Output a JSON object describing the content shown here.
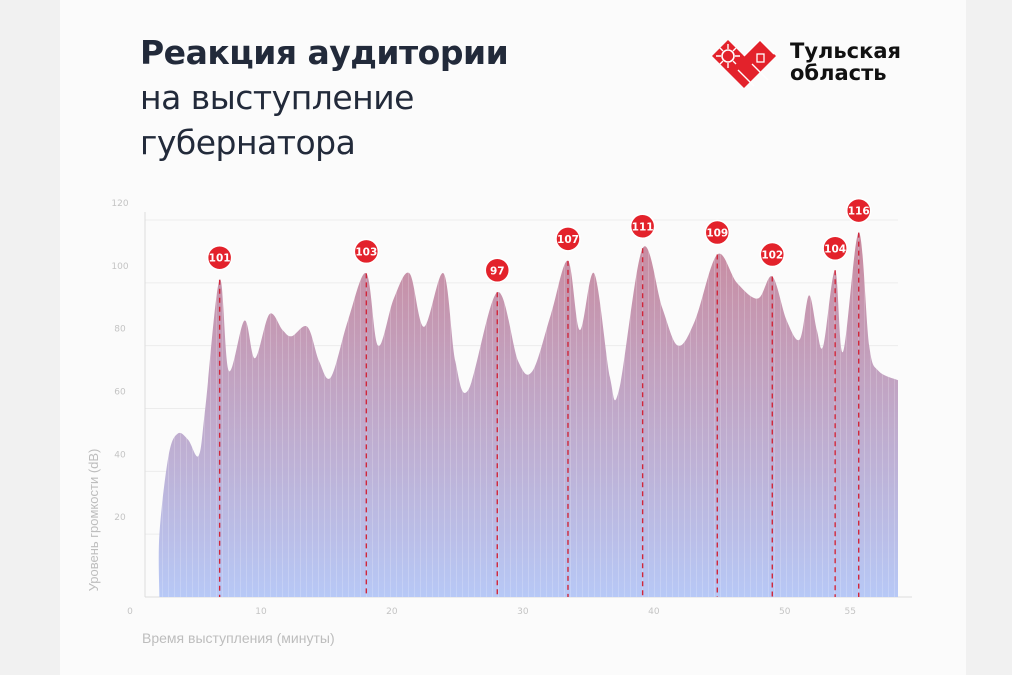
{
  "header": {
    "title_line1": "Реакция аудитории",
    "title_line2": "на выступление",
    "title_line3": "губернатора"
  },
  "logo": {
    "line1": "Тульская",
    "line2": "область",
    "color": "#e3222b"
  },
  "chart_data": {
    "type": "area",
    "title": "Реакция аудитории на выступление губернатора",
    "xlabel": "Время выступления (минуты)",
    "ylabel": "Уровень громкости (dB)",
    "xlim": [
      0,
      57.5
    ],
    "ylim": [
      0,
      120
    ],
    "xticks": [
      0,
      10,
      20,
      30,
      40,
      50,
      55
    ],
    "yticks": [
      20,
      40,
      60,
      80,
      100,
      120
    ],
    "grid": true,
    "colors": {
      "top": "#c98a9e",
      "bottom": "#b7c8f6",
      "marker": "#e3222b",
      "line": "#d0263a"
    },
    "x": [
      1.1,
      1.8,
      2.5,
      3.3,
      4.1,
      4.6,
      5.7,
      6.4,
      7.6,
      8.4,
      9.5,
      10.5,
      11.2,
      12.4,
      13.3,
      14.2,
      15.5,
      16.9,
      17.8,
      19.0,
      20.2,
      21.3,
      22.8,
      23.7,
      24.7,
      26.9,
      28.5,
      29.6,
      31.0,
      32.3,
      33.2,
      34.3,
      35.5,
      36.2,
      38.0,
      39.5,
      40.7,
      42.0,
      43.7,
      45.2,
      46.8,
      47.9,
      49.0,
      50.0,
      50.7,
      51.3,
      51.8,
      52.7,
      53.3,
      54.5,
      55.3,
      56.0,
      57.5
    ],
    "y": [
      20,
      45,
      52,
      50,
      45,
      60,
      101,
      72,
      88,
      76,
      90,
      85,
      83,
      86,
      75,
      70,
      88,
      103,
      80,
      95,
      103,
      86,
      103,
      75,
      66,
      97,
      75,
      72,
      90,
      107,
      85,
      103,
      70,
      66,
      111,
      92,
      80,
      88,
      109,
      100,
      95,
      102,
      88,
      82,
      96,
      85,
      80,
      104,
      78,
      116,
      80,
      72,
      69
    ],
    "annotations": [
      {
        "x": 5.7,
        "label": "101"
      },
      {
        "x": 16.9,
        "label": "103"
      },
      {
        "x": 26.9,
        "label": "97"
      },
      {
        "x": 32.3,
        "label": "107"
      },
      {
        "x": 38.0,
        "label": "111"
      },
      {
        "x": 43.7,
        "label": "109"
      },
      {
        "x": 47.9,
        "label": "102"
      },
      {
        "x": 52.7,
        "label": "104"
      },
      {
        "x": 54.5,
        "label": "116"
      }
    ]
  }
}
